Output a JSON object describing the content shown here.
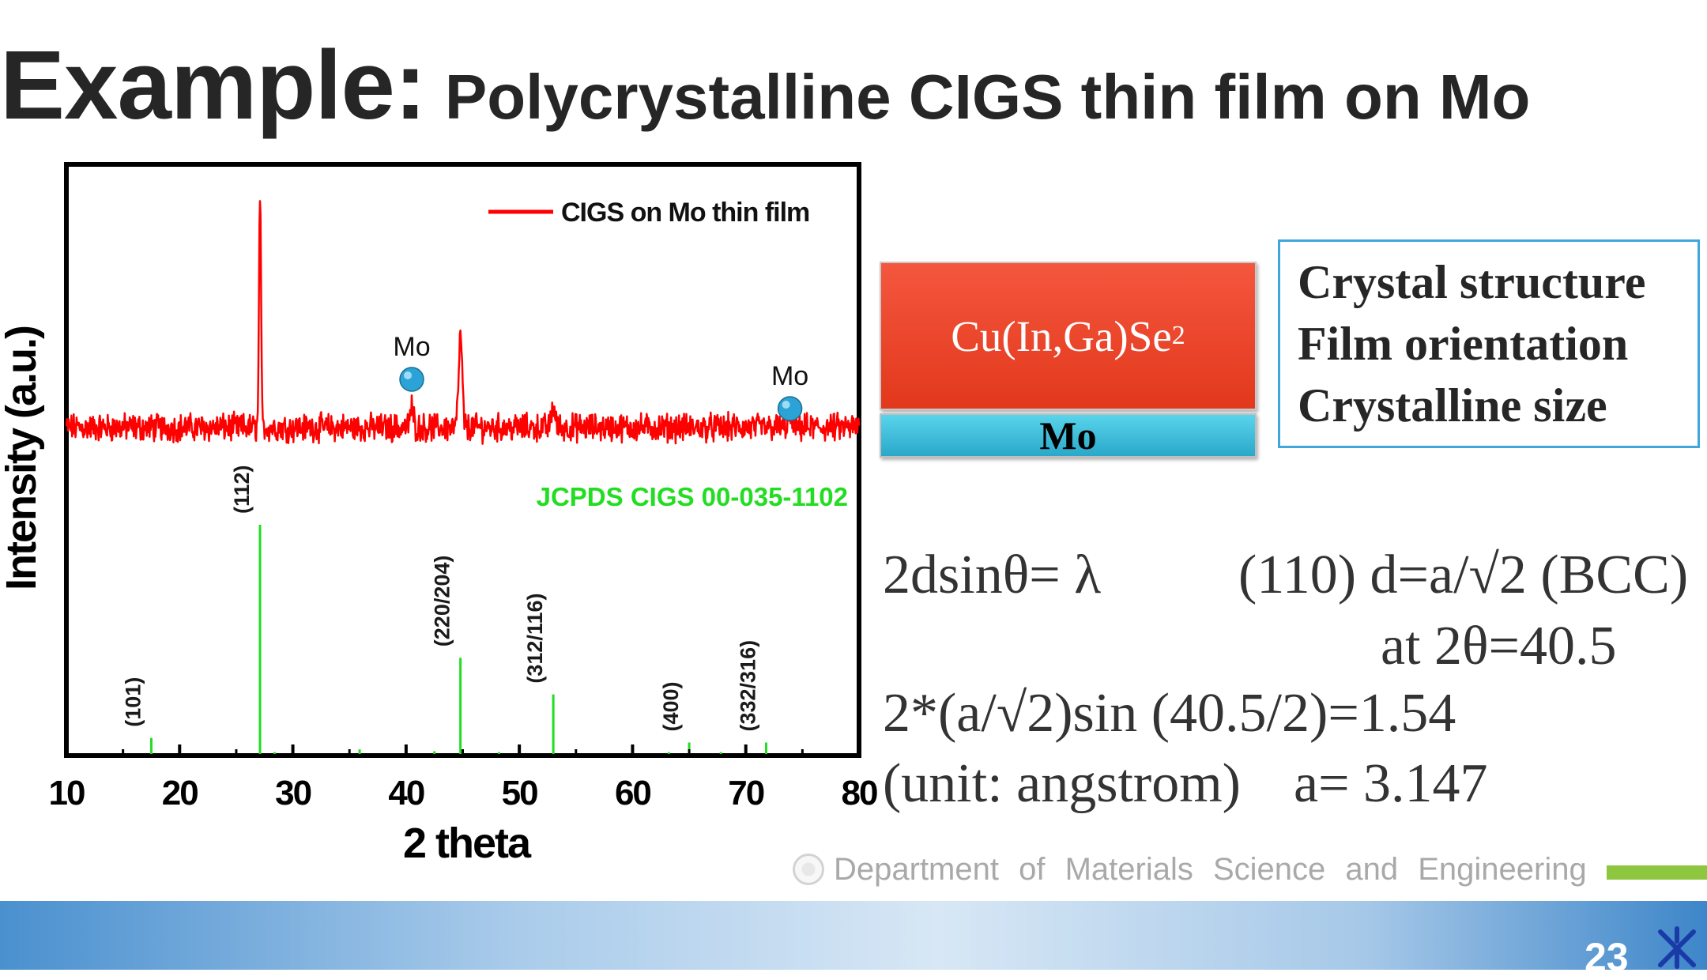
{
  "slide": {
    "title_main": "Example:",
    "title_sub": "Polycrystalline CIGS thin film on Mo",
    "page_number": "23",
    "footer_text": "Department of Materials Science and Engineering"
  },
  "stack": {
    "top_layer_text": "Cu(In,Ga)Se",
    "top_layer_subscript": "2",
    "bottom_layer_text": "Mo"
  },
  "info_box": {
    "lines": [
      "Crystal structure",
      "Film orientation",
      "Crystalline size"
    ]
  },
  "equations": {
    "bragg": "2dsinθ= λ",
    "spacing": "(110) d=a/√2 (BCC)",
    "angle": "at 2θ=40.5",
    "calc": "2*(a/√2)sin (40.5/2)=1.54",
    "unit": "(unit: angstrom)",
    "result": "a= 3.147"
  },
  "colors": {
    "measured_line": "#ff0000",
    "reference_lines": "#22dd22",
    "mo_marker": "#2ba3d6"
  },
  "chart_data": {
    "type": "line",
    "xlabel": "2 theta",
    "ylabel": "Intensity (a.u.)",
    "xlim": [
      10,
      80
    ],
    "x_ticks": [
      10,
      20,
      30,
      40,
      50,
      60,
      70,
      80
    ],
    "series": [
      {
        "name": "CIGS on Mo thin film",
        "color": "#ff0000",
        "baseline": 0.57,
        "peaks": [
          {
            "x": 27.1,
            "y": 1.0
          },
          {
            "x": 40.5,
            "y": 0.605
          },
          {
            "x": 44.8,
            "y": 0.735
          },
          {
            "x": 53.0,
            "y": 0.61
          },
          {
            "x": 73.9,
            "y": 0.59
          }
        ]
      }
    ],
    "reference": {
      "label": "JCPDS CIGS 00-035-1102",
      "color": "#22dd22",
      "lines": [
        {
          "x": 17.5,
          "h": 0.035,
          "label": "(101)"
        },
        {
          "x": 27.1,
          "h": 0.5,
          "label": "(112)"
        },
        {
          "x": 28.4,
          "h": 0.004,
          "label": ""
        },
        {
          "x": 35.9,
          "h": 0.01,
          "label": ""
        },
        {
          "x": 42.5,
          "h": 0.006,
          "label": ""
        },
        {
          "x": 44.8,
          "h": 0.21,
          "label": "(220/204)"
        },
        {
          "x": 48.2,
          "h": 0.004,
          "label": ""
        },
        {
          "x": 53.0,
          "h": 0.13,
          "label": "(312/116)"
        },
        {
          "x": 63.2,
          "h": 0.004,
          "label": ""
        },
        {
          "x": 65.0,
          "h": 0.025,
          "label": "(400)"
        },
        {
          "x": 67.8,
          "h": 0.004,
          "label": ""
        },
        {
          "x": 71.8,
          "h": 0.025,
          "label": "(332/316)"
        }
      ]
    },
    "annotations": [
      {
        "text": "Mo",
        "x": 40.5,
        "marker": true
      },
      {
        "text": "Mo",
        "x": 73.9,
        "marker": true
      }
    ],
    "legend_position": "top-right",
    "grid": false
  }
}
